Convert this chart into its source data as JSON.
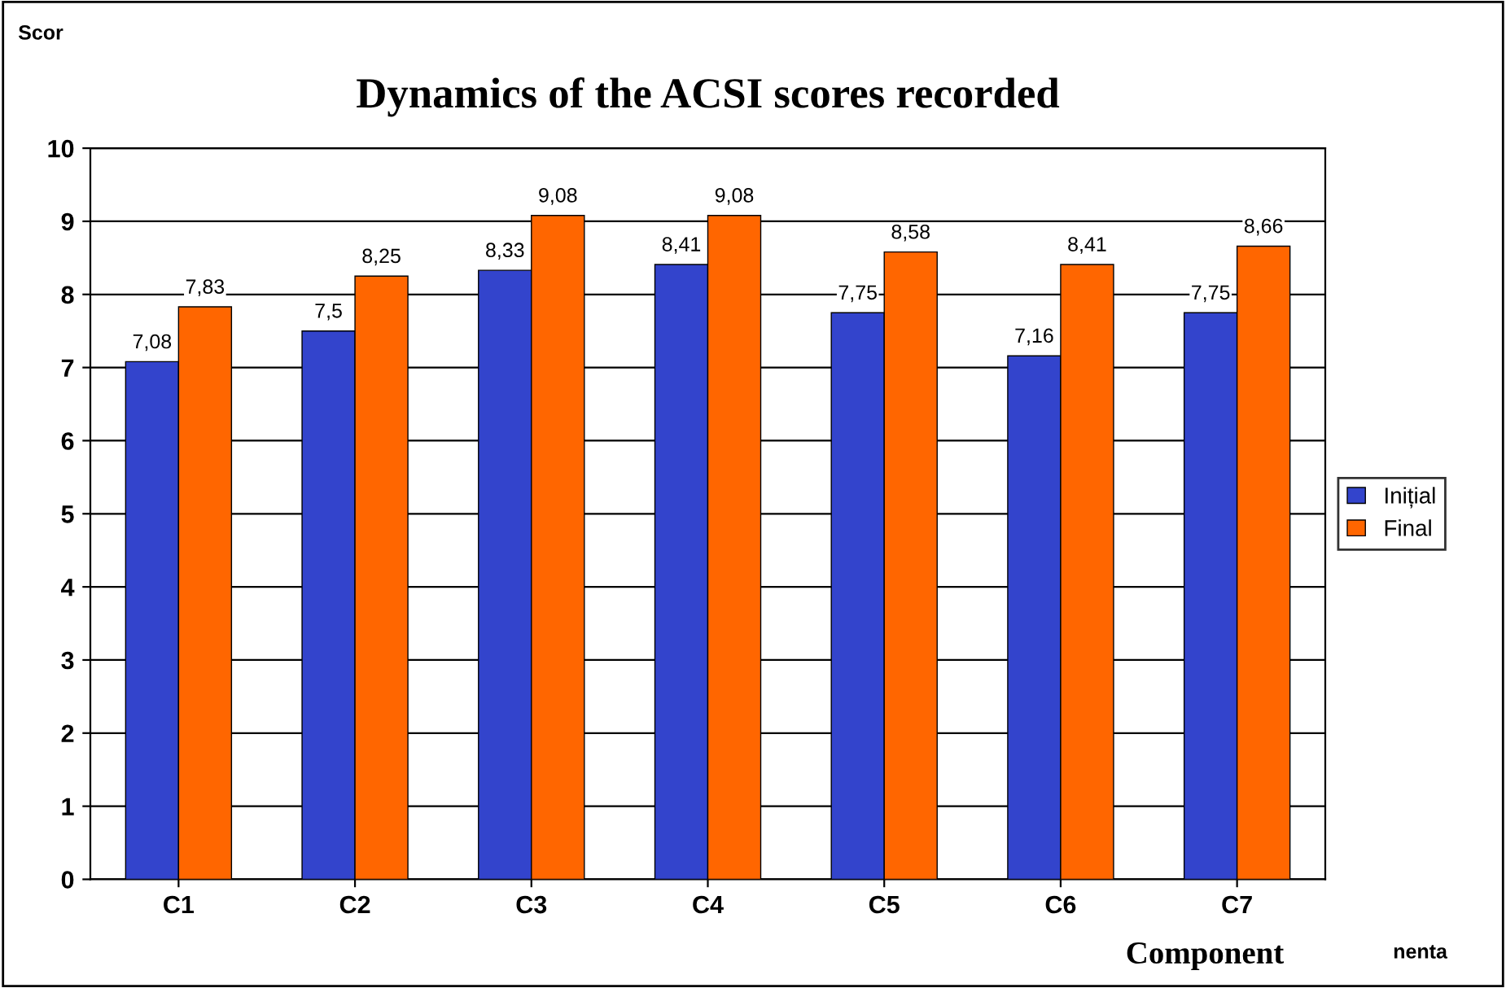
{
  "chart_data": {
    "type": "bar",
    "title": "Dynamics of the ACSI scores recorded",
    "ylabel": "Scor",
    "xlabel": "Component",
    "annotations": [
      "nenta"
    ],
    "categories": [
      "C1",
      "C2",
      "C3",
      "C4",
      "C5",
      "C6",
      "C7"
    ],
    "series": [
      {
        "name": "Inițial",
        "color": "#3344cc",
        "values": [
          7.08,
          7.5,
          8.33,
          8.41,
          7.75,
          7.16,
          7.75
        ],
        "value_labels": [
          "7,08",
          "7,5",
          "8,33",
          "8,41",
          "7,75",
          "7,16",
          "7,75"
        ]
      },
      {
        "name": "Final",
        "color": "#ff6600",
        "values": [
          7.83,
          8.25,
          9.08,
          9.08,
          8.58,
          8.41,
          8.66
        ],
        "value_labels": [
          "7,83",
          "8,25",
          "9,08",
          "9,08",
          "8,58",
          "8,41",
          "8,66"
        ]
      }
    ],
    "ylim": [
      0,
      10
    ],
    "yticks": [
      0,
      1,
      2,
      3,
      4,
      5,
      6,
      7,
      8,
      9,
      10
    ],
    "grid": "y",
    "legend": "right"
  }
}
